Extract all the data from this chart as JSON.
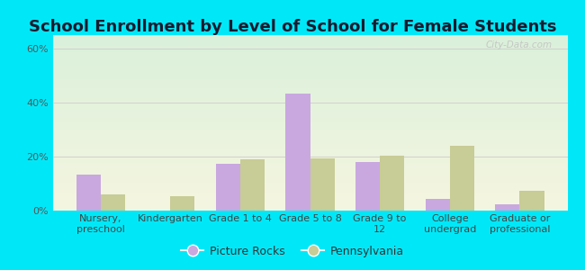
{
  "title": "School Enrollment by Level of School for Female Students",
  "categories": [
    "Nursery,\npreschool",
    "Kindergarten",
    "Grade 1 to 4",
    "Grade 5 to 8",
    "Grade 9 to\n12",
    "College\nundergrad",
    "Graduate or\nprofessional"
  ],
  "picture_rocks": [
    13.5,
    0,
    17.5,
    43.5,
    18.0,
    4.5,
    2.5
  ],
  "pennsylvania": [
    6.0,
    5.5,
    19.0,
    19.5,
    20.5,
    24.0,
    7.5
  ],
  "bar_color_pr": "#c9a8e0",
  "bar_color_pa": "#c8cc96",
  "background_outer": "#00e8f8",
  "grad_top": "#daf0da",
  "grad_bottom": "#f5f5e0",
  "yticks": [
    0,
    20,
    40,
    60
  ],
  "ylim": [
    0,
    65
  ],
  "legend_label_pr": "Picture Rocks",
  "legend_label_pa": "Pennsylvania",
  "title_fontsize": 13,
  "tick_fontsize": 8,
  "legend_fontsize": 9,
  "watermark": "City-Data.com"
}
